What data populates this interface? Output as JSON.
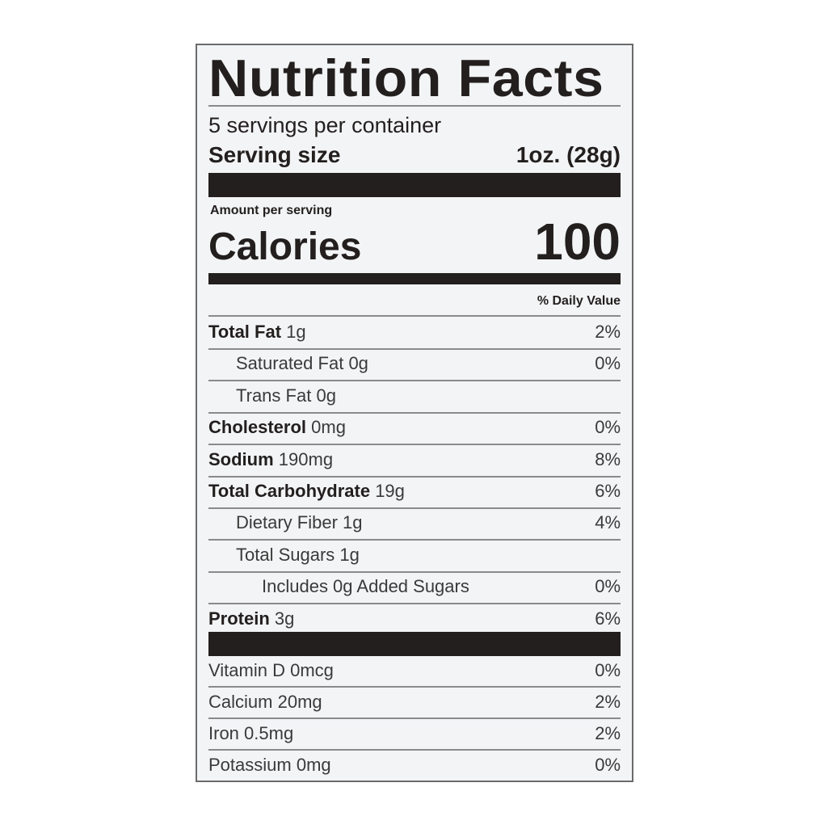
{
  "title": "Nutrition Facts",
  "servings_per_container": "5 servings per container",
  "serving_size_label": "Serving size",
  "serving_size_value": "1oz. (28g)",
  "amount_per_serving": "Amount per serving",
  "calories_label": "Calories",
  "calories_value": "100",
  "daily_value_header": "% Daily Value",
  "nutrients": [
    {
      "name": "Total Fat",
      "amount": "1g",
      "dv": "2%",
      "bold": true,
      "indent": 0
    },
    {
      "name": "Saturated Fat",
      "amount": "0g",
      "dv": "0%",
      "bold": false,
      "indent": 1
    },
    {
      "name": "Trans Fat",
      "amount": "0g",
      "dv": "",
      "bold": false,
      "indent": 1
    },
    {
      "name": "Cholesterol",
      "amount": "0mg",
      "dv": "0%",
      "bold": true,
      "indent": 0
    },
    {
      "name": "Sodium",
      "amount": "190mg",
      "dv": "8%",
      "bold": true,
      "indent": 0
    },
    {
      "name": "Total Carbohydrate",
      "amount": "19g",
      "dv": "6%",
      "bold": true,
      "indent": 0
    },
    {
      "name": "Dietary Fiber",
      "amount": "1g",
      "dv": "4%",
      "bold": false,
      "indent": 1
    },
    {
      "name": "Total Sugars",
      "amount": "1g",
      "dv": "",
      "bold": false,
      "indent": 1
    },
    {
      "name": "Includes 0g Added Sugars",
      "amount": "",
      "dv": "0%",
      "bold": false,
      "indent": 2
    },
    {
      "name": "Protein",
      "amount": "3g",
      "dv": "6%",
      "bold": true,
      "indent": 0
    }
  ],
  "vitamins": [
    {
      "name": "Vitamin D",
      "amount": "0mcg",
      "dv": "0%"
    },
    {
      "name": "Calcium",
      "amount": "20mg",
      "dv": "2%"
    },
    {
      "name": "Iron",
      "amount": "0.5mg",
      "dv": "2%"
    },
    {
      "name": "Potassium",
      "amount": "0mg",
      "dv": "0%"
    }
  ]
}
